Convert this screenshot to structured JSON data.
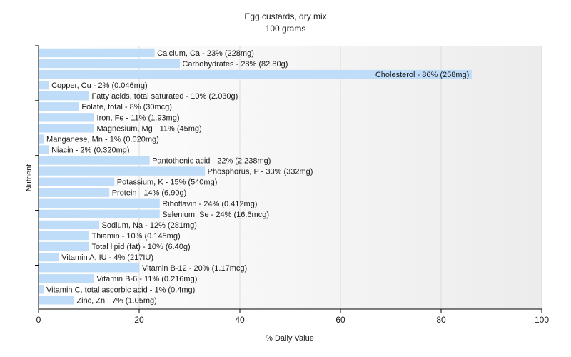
{
  "chart_data": {
    "type": "bar",
    "orientation": "horizontal",
    "title": "Egg custards, dry mix",
    "subtitle": "100 grams",
    "xlabel": "% Daily Value",
    "ylabel": "Nutrient",
    "xlim": [
      0,
      100
    ],
    "xticks": [
      0,
      20,
      40,
      60,
      80,
      100
    ],
    "grid": true,
    "legend": "none",
    "colors": {
      "bar": "#bfdcf8",
      "plot_bg_from": "#ffffff",
      "plot_bg_to": "#ececec",
      "grid": "#dcdcdc",
      "axis": "#000000"
    },
    "categories": [
      "Calcium, Ca",
      "Carbohydrates",
      "Cholesterol",
      "Copper, Cu",
      "Fatty acids, total saturated",
      "Folate, total",
      "Iron, Fe",
      "Magnesium, Mg",
      "Manganese, Mn",
      "Niacin",
      "Pantothenic acid",
      "Phosphorus, P",
      "Potassium, K",
      "Protein",
      "Riboflavin",
      "Selenium, Se",
      "Sodium, Na",
      "Thiamin",
      "Total lipid (fat)",
      "Vitamin A, IU",
      "Vitamin B-12",
      "Vitamin B-6",
      "Vitamin C, total ascorbic acid",
      "Zinc, Zn"
    ],
    "values": [
      23,
      28,
      86,
      2,
      10,
      8,
      11,
      11,
      1,
      2,
      22,
      33,
      15,
      14,
      24,
      24,
      12,
      10,
      10,
      4,
      20,
      11,
      1,
      7
    ],
    "labels": [
      "Calcium, Ca - 23% (228mg)",
      "Carbohydrates - 28% (82.80g)",
      "Cholesterol - 86% (258mg)",
      "Copper, Cu - 2% (0.046mg)",
      "Fatty acids, total saturated - 10% (2.030g)",
      "Folate, total - 8% (30mcg)",
      "Iron, Fe - 11% (1.93mg)",
      "Magnesium, Mg - 11% (45mg)",
      "Manganese, Mn - 1% (0.020mg)",
      "Niacin - 2% (0.320mg)",
      "Pantothenic acid - 22% (2.238mg)",
      "Phosphorus, P - 33% (332mg)",
      "Potassium, K - 15% (540mg)",
      "Protein - 14% (6.90g)",
      "Riboflavin - 24% (0.412mg)",
      "Selenium, Se - 24% (16.6mcg)",
      "Sodium, Na - 12% (281mg)",
      "Thiamin - 10% (0.145mg)",
      "Total lipid (fat) - 10% (6.40g)",
      "Vitamin A, IU - 4% (217IU)",
      "Vitamin B-12 - 20% (1.17mcg)",
      "Vitamin B-6 - 11% (0.216mg)",
      "Vitamin C, total ascorbic acid - 1% (0.4mg)",
      "Zinc, Zn - 7% (1.05mg)"
    ]
  }
}
